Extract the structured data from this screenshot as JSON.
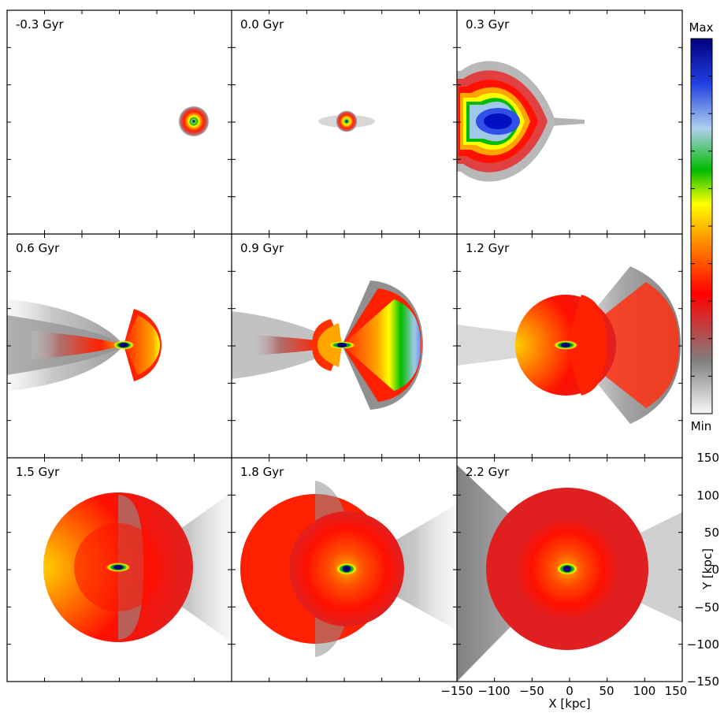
{
  "chart_data": {
    "type": "heatmap",
    "description_panels": "3x3 grid of density snapshots",
    "panels": [
      {
        "label": "-0.3 Gyr"
      },
      {
        "label": "0.0 Gyr"
      },
      {
        "label": "0.3 Gyr"
      },
      {
        "label": "0.6 Gyr"
      },
      {
        "label": "0.9 Gyr"
      },
      {
        "label": "1.2 Gyr"
      },
      {
        "label": "1.5 Gyr"
      },
      {
        "label": "1.8 Gyr"
      },
      {
        "label": "2.2 Gyr"
      }
    ],
    "xlabel": "X [kpc]",
    "ylabel": "Y [kpc]",
    "xlim": [
      -150,
      150
    ],
    "ylim": [
      -150,
      150
    ],
    "xticks": [
      "−150",
      "−100",
      "−50",
      "0",
      "50",
      "100",
      "150"
    ],
    "yticks": [
      "150",
      "100",
      "50",
      "0",
      "−50",
      "−100",
      "−150"
    ],
    "colorbar": {
      "max_label": "Max",
      "min_label": "Min",
      "colors": [
        "#f8f8f8",
        "#808080",
        "#ff0000",
        "#ffa500",
        "#ffff00",
        "#00bb00",
        "#b0d0f0",
        "#2040e0",
        "#000080"
      ]
    }
  }
}
